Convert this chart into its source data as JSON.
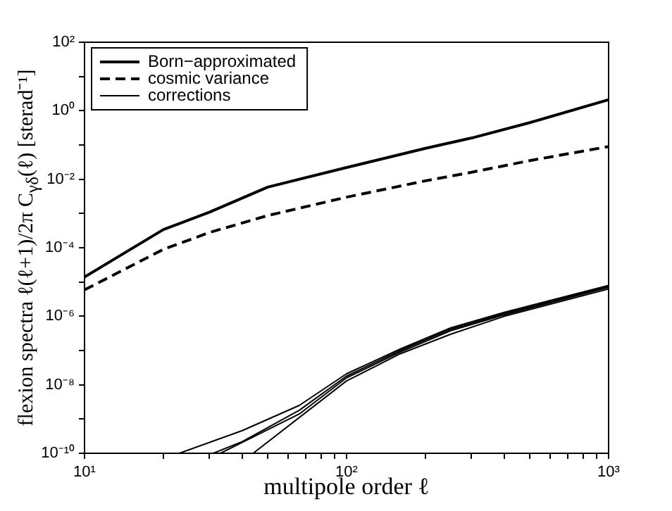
{
  "chart_data": {
    "type": "line",
    "xlabel": "multipole order ℓ",
    "ylabel": "flexion spectra ℓ(ℓ+1)/2π C$_{γδ}$(ℓ) [sterad⁻¹]",
    "log": "xy",
    "grid": false,
    "legend": "top left",
    "marker": "none",
    "xlim": [
      10,
      1000
    ],
    "ylim": [
      1e-10,
      100
    ],
    "xticks": [
      {
        "value": 10,
        "label": "10¹"
      },
      {
        "value": 20,
        "label": null
      },
      {
        "value": 30,
        "label": null
      },
      {
        "value": 40,
        "label": null
      },
      {
        "value": 50,
        "label": null
      },
      {
        "value": 60,
        "label": null
      },
      {
        "value": 70,
        "label": null
      },
      {
        "value": 80,
        "label": null
      },
      {
        "value": 90,
        "label": null
      },
      {
        "value": 100,
        "label": "10²"
      },
      {
        "value": 200,
        "label": null
      },
      {
        "value": 300,
        "label": null
      },
      {
        "value": 400,
        "label": null
      },
      {
        "value": 500,
        "label": null
      },
      {
        "value": 600,
        "label": null
      },
      {
        "value": 700,
        "label": null
      },
      {
        "value": 800,
        "label": null
      },
      {
        "value": 900,
        "label": null
      },
      {
        "value": 1000,
        "label": "10³"
      }
    ],
    "yticks": [
      {
        "value": 1e-10,
        "label": "10⁻¹⁰"
      },
      {
        "value": 1e-09,
        "label": null
      },
      {
        "value": 1e-08,
        "label": "10⁻⁸"
      },
      {
        "value": 1e-07,
        "label": null
      },
      {
        "value": 1e-06,
        "label": "10⁻⁶"
      },
      {
        "value": 1e-05,
        "label": null
      },
      {
        "value": 0.0001,
        "label": "10⁻⁴"
      },
      {
        "value": 0.001,
        "label": null
      },
      {
        "value": 0.01,
        "label": "10⁻²"
      },
      {
        "value": 0.1,
        "label": null
      },
      {
        "value": 1,
        "label": "10⁰"
      },
      {
        "value": 10,
        "label": null
      },
      {
        "value": 100,
        "label": "10²"
      }
    ],
    "series": [
      {
        "name": "Born−approximated",
        "color": "#000000",
        "line_style": "solid",
        "x": [
          10,
          20,
          30,
          50,
          100,
          200,
          300,
          500,
          1000
        ],
        "values": [
          1.4e-05,
          0.00034,
          0.0011,
          0.0059,
          0.022,
          0.08,
          0.16,
          0.45,
          2.1
        ]
      },
      {
        "name": "cosmic variance",
        "color": "#000000",
        "line_style": "dashed",
        "x": [
          10,
          20,
          30,
          50,
          100,
          200,
          300,
          500,
          1000
        ],
        "values": [
          5.9e-06,
          9e-05,
          0.00028,
          0.00087,
          0.003,
          0.009,
          0.016,
          0.035,
          0.09
        ]
      },
      {
        "name": "corrections",
        "color": "#000000",
        "line_style": "solid",
        "x": [
          23,
          40,
          66,
          100,
          160,
          250,
          400,
          1000
        ],
        "values": [
          1e-10,
          4.6e-10,
          2.5e-09,
          2.1e-08,
          1.1e-07,
          4.6e-07,
          1.3e-06,
          8e-06
        ]
      },
      {
        "color": "#000000",
        "line_style": "solid",
        "x": [
          31,
          40,
          66,
          100,
          160,
          250,
          400,
          1000
        ],
        "values": [
          1e-10,
          2.2e-10,
          1.8e-09,
          1.8e-08,
          1e-07,
          4.2e-07,
          1.2e-06,
          7.5e-06
        ]
      },
      {
        "color": "#000000",
        "line_style": "solid",
        "x": [
          33,
          66,
          100,
          160,
          250,
          400,
          1000
        ],
        "values": [
          1e-10,
          1.4e-09,
          1.6e-08,
          9e-08,
          3.8e-07,
          1.1e-06,
          7e-06
        ]
      },
      {
        "color": "#000000",
        "line_style": "solid",
        "x": [
          44,
          100,
          160,
          250,
          400,
          1000
        ],
        "values": [
          1e-10,
          1.3e-08,
          8e-08,
          3e-07,
          1e-06,
          6.3e-06
        ]
      }
    ]
  }
}
